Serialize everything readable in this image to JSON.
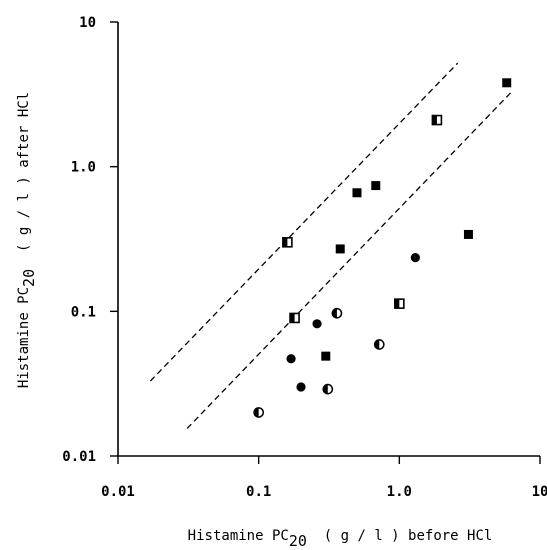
{
  "chart_data": {
    "type": "scatter",
    "scale": {
      "x": "log",
      "y": "log"
    },
    "xlim": [
      0.01,
      10
    ],
    "ylim": [
      0.01,
      10
    ],
    "x_ticks": [
      {
        "value": 0.01,
        "label": "0.01"
      },
      {
        "value": 0.1,
        "label": "0.1"
      },
      {
        "value": 1,
        "label": "1.0"
      },
      {
        "value": 10,
        "label": "10"
      }
    ],
    "y_ticks": [
      {
        "value": 0.01,
        "label": "0.01"
      },
      {
        "value": 0.1,
        "label": "0.1"
      },
      {
        "value": 1,
        "label": "1.0"
      },
      {
        "value": 10,
        "label": "10"
      }
    ],
    "xlabel": {
      "prefix": "Histamine PC",
      "subscript": "20",
      "suffix": "  ( g / l ) before HCl"
    },
    "ylabel": {
      "prefix": "Histamine PC",
      "subscript": "20",
      "suffix": "  ( g / l ) after HCl"
    },
    "grid": false,
    "legend": "none",
    "series": [
      {
        "marker": "filled-square",
        "points": [
          [
            5.8,
            3.8
          ],
          [
            0.68,
            0.74
          ],
          [
            0.5,
            0.66
          ],
          [
            0.38,
            0.27
          ],
          [
            3.1,
            0.34
          ],
          [
            0.3,
            0.049
          ]
        ]
      },
      {
        "marker": "half-filled-square",
        "points": [
          [
            1.85,
            2.1
          ],
          [
            0.16,
            0.3
          ],
          [
            0.18,
            0.09
          ],
          [
            1.0,
            0.113
          ]
        ]
      },
      {
        "marker": "filled-circle",
        "points": [
          [
            1.3,
            0.235
          ],
          [
            0.26,
            0.082
          ],
          [
            0.17,
            0.047
          ],
          [
            0.2,
            0.03
          ]
        ]
      },
      {
        "marker": "half-filled-circle",
        "points": [
          [
            0.36,
            0.097
          ],
          [
            0.72,
            0.059
          ],
          [
            0.31,
            0.029
          ],
          [
            0.1,
            0.02
          ]
        ]
      }
    ],
    "reference_lines": [
      {
        "style": "dashed",
        "from": [
          0.017,
          0.033
        ],
        "to": [
          2.6,
          5.2
        ]
      },
      {
        "style": "dashed",
        "from": [
          0.031,
          0.0155
        ],
        "to": [
          6.3,
          3.3
        ]
      }
    ]
  }
}
